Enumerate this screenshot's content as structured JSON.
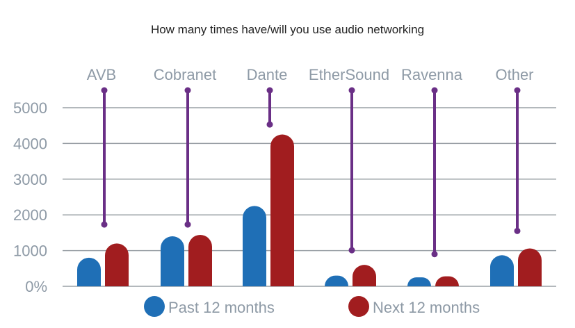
{
  "chart_data": {
    "type": "bar",
    "title": "How many times have/will you use audio networking",
    "xlabel": "",
    "ylabel": "",
    "categories": [
      "AVB",
      "Cobranet",
      "Dante",
      "EtherSound",
      "Ravenna",
      "Other"
    ],
    "series": [
      {
        "name": "Past 12 months",
        "color": "#1f6fb6",
        "values": [
          800,
          1400,
          2250,
          300,
          250,
          870
        ]
      },
      {
        "name": "Next 12 months",
        "color": "#a11d1f",
        "values": [
          1200,
          1440,
          4250,
          600,
          280,
          1060
        ]
      }
    ],
    "range_lines": {
      "color": "#6a2f86",
      "top": [
        5500,
        5500,
        5500,
        5500,
        5500,
        5500
      ],
      "bottom": [
        1730,
        1730,
        4530,
        1010,
        900,
        1550
      ]
    },
    "yticks": [
      0,
      1000,
      2000,
      3000,
      4000,
      5000
    ],
    "ytick_labels": [
      "0%",
      "1000",
      "2000",
      "3000",
      "4000",
      "5000"
    ],
    "ylim": [
      0,
      5500
    ],
    "grid": true,
    "legend_position": "bottom"
  }
}
